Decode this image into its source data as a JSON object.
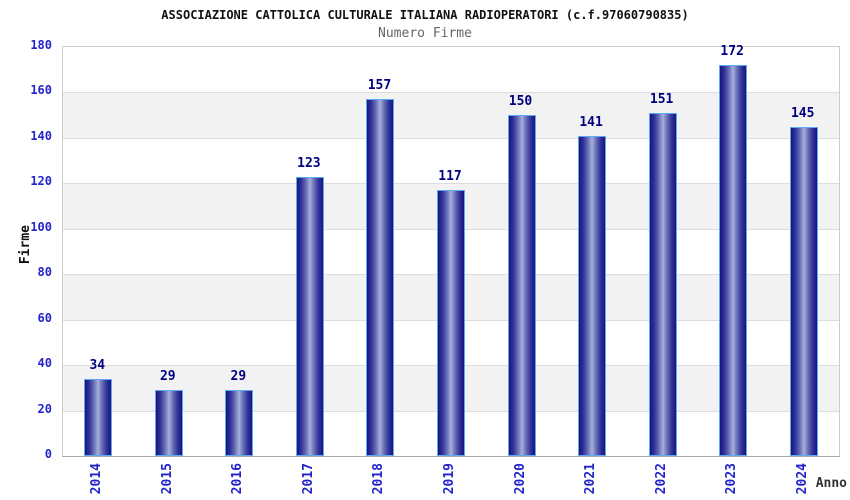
{
  "page": {
    "title": "ASSOCIAZIONE CATTOLICA CULTURALE ITALIANA RADIOPERATORI (c.f.97060790835)",
    "subtitle": "Numero Firme"
  },
  "chart_data": {
    "type": "bar",
    "title": "ASSOCIAZIONE CATTOLICA CULTURALE ITALIANA RADIOPERATORI (c.f.97060790835)",
    "subtitle": "Numero Firme",
    "categories": [
      "2014",
      "2015",
      "2016",
      "2017",
      "2018",
      "2019",
      "2020",
      "2021",
      "2022",
      "2023",
      "2024"
    ],
    "values": [
      34,
      29,
      29,
      123,
      157,
      117,
      150,
      141,
      151,
      172,
      145
    ],
    "xlabel": "Anno",
    "ylabel": "Firme",
    "ylim": [
      0,
      180
    ],
    "ytick_step": 20,
    "yticks": [
      0,
      20,
      40,
      60,
      80,
      100,
      120,
      140,
      160,
      180
    ],
    "grid": true,
    "legend_position": "none",
    "colors": {
      "bar_dark": "#15156e",
      "bar_light": "#a9b1dc",
      "bar_border": "#5caaf5",
      "tick_label": "#2323cd",
      "value_label": "#000080",
      "band_gray": "#f2f2f2",
      "band_white": "#ffffff",
      "gridline": "#dddddd",
      "plot_border": "#cccccc",
      "title_color": "#111111",
      "subtitle_color": "#666666"
    }
  }
}
